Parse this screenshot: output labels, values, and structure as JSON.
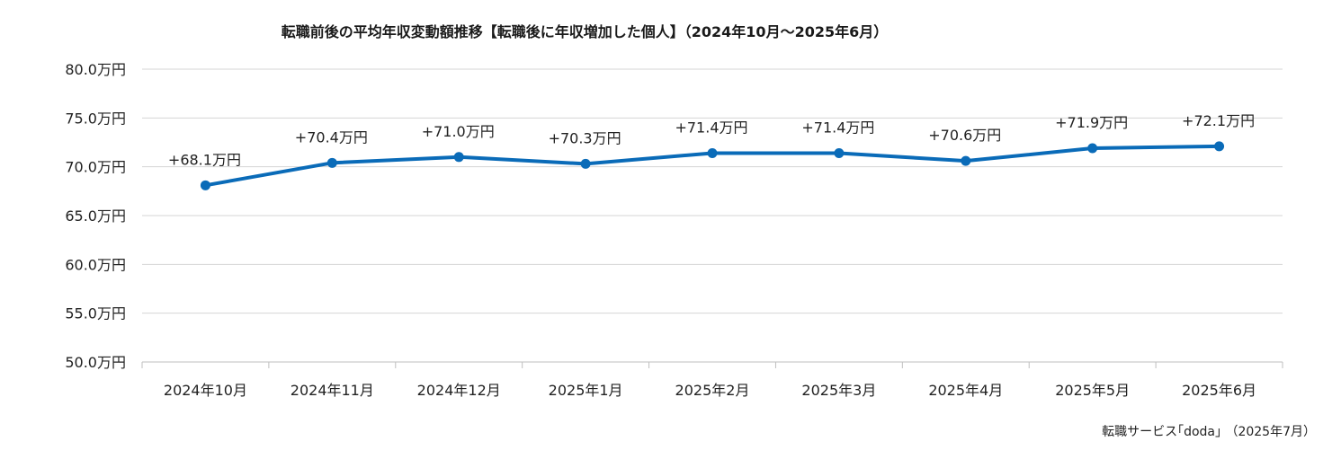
{
  "chart_data": {
    "type": "line",
    "title": "転職前後の平均年収変動額推移【転職後に年収増加した個人】（2024年10月～2025年6月）",
    "categories": [
      "2024年10月",
      "2024年11月",
      "2024年12月",
      "2025年1月",
      "2025年2月",
      "2025年3月",
      "2025年4月",
      "2025年5月",
      "2025年6月"
    ],
    "series": [
      {
        "values": [
          68.1,
          70.4,
          71.0,
          70.3,
          71.4,
          71.4,
          70.6,
          71.9,
          72.1
        ],
        "data_labels": [
          "+68.1万円",
          "+70.4万円",
          "+71.0万円",
          "+70.3万円",
          "+71.4万円",
          "+71.4万円",
          "+70.6万円",
          "+71.9万円",
          "+72.1万円"
        ],
        "color": "#0a6bb8"
      }
    ],
    "ylim": [
      50.0,
      80.0
    ],
    "yticks": [
      50.0,
      55.0,
      60.0,
      65.0,
      70.0,
      75.0,
      80.0
    ],
    "ytick_labels": [
      "50.0万円",
      "55.0万円",
      "60.0万円",
      "65.0万円",
      "70.0万円",
      "75.0万円",
      "80.0万円"
    ],
    "xlabel": "",
    "ylabel": "",
    "grid": true,
    "legend": "none",
    "gridline_color": "#d4d4d4",
    "axis_color": "#bfbfbf"
  },
  "source_note": "転職サービス｢doda｣ （2025年7月）"
}
